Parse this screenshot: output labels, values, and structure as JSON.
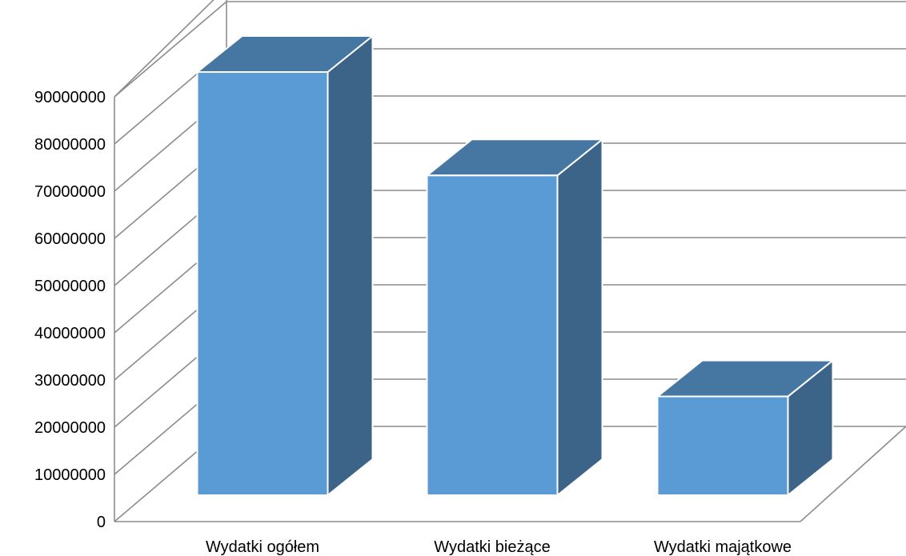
{
  "chart_data": {
    "type": "bar",
    "style": "3d-column",
    "categories": [
      "Wydatki ogółem",
      "Wydatki bieżące",
      "Wydatki majątkowe"
    ],
    "series": [
      {
        "values": [
          90000000,
          68000000,
          21000000
        ]
      }
    ],
    "ylim": [
      0,
      90000000
    ],
    "ytick_step": 10000000,
    "yticks": [
      "0",
      "10000000",
      "20000000",
      "30000000",
      "40000000",
      "50000000",
      "60000000",
      "70000000",
      "80000000",
      "90000000"
    ],
    "grid": true,
    "legend": "none",
    "colors": {
      "front": "#5b9bd5",
      "side": "#3b6488",
      "top": "#4677a3",
      "grid": "#8c8c8c"
    }
  }
}
